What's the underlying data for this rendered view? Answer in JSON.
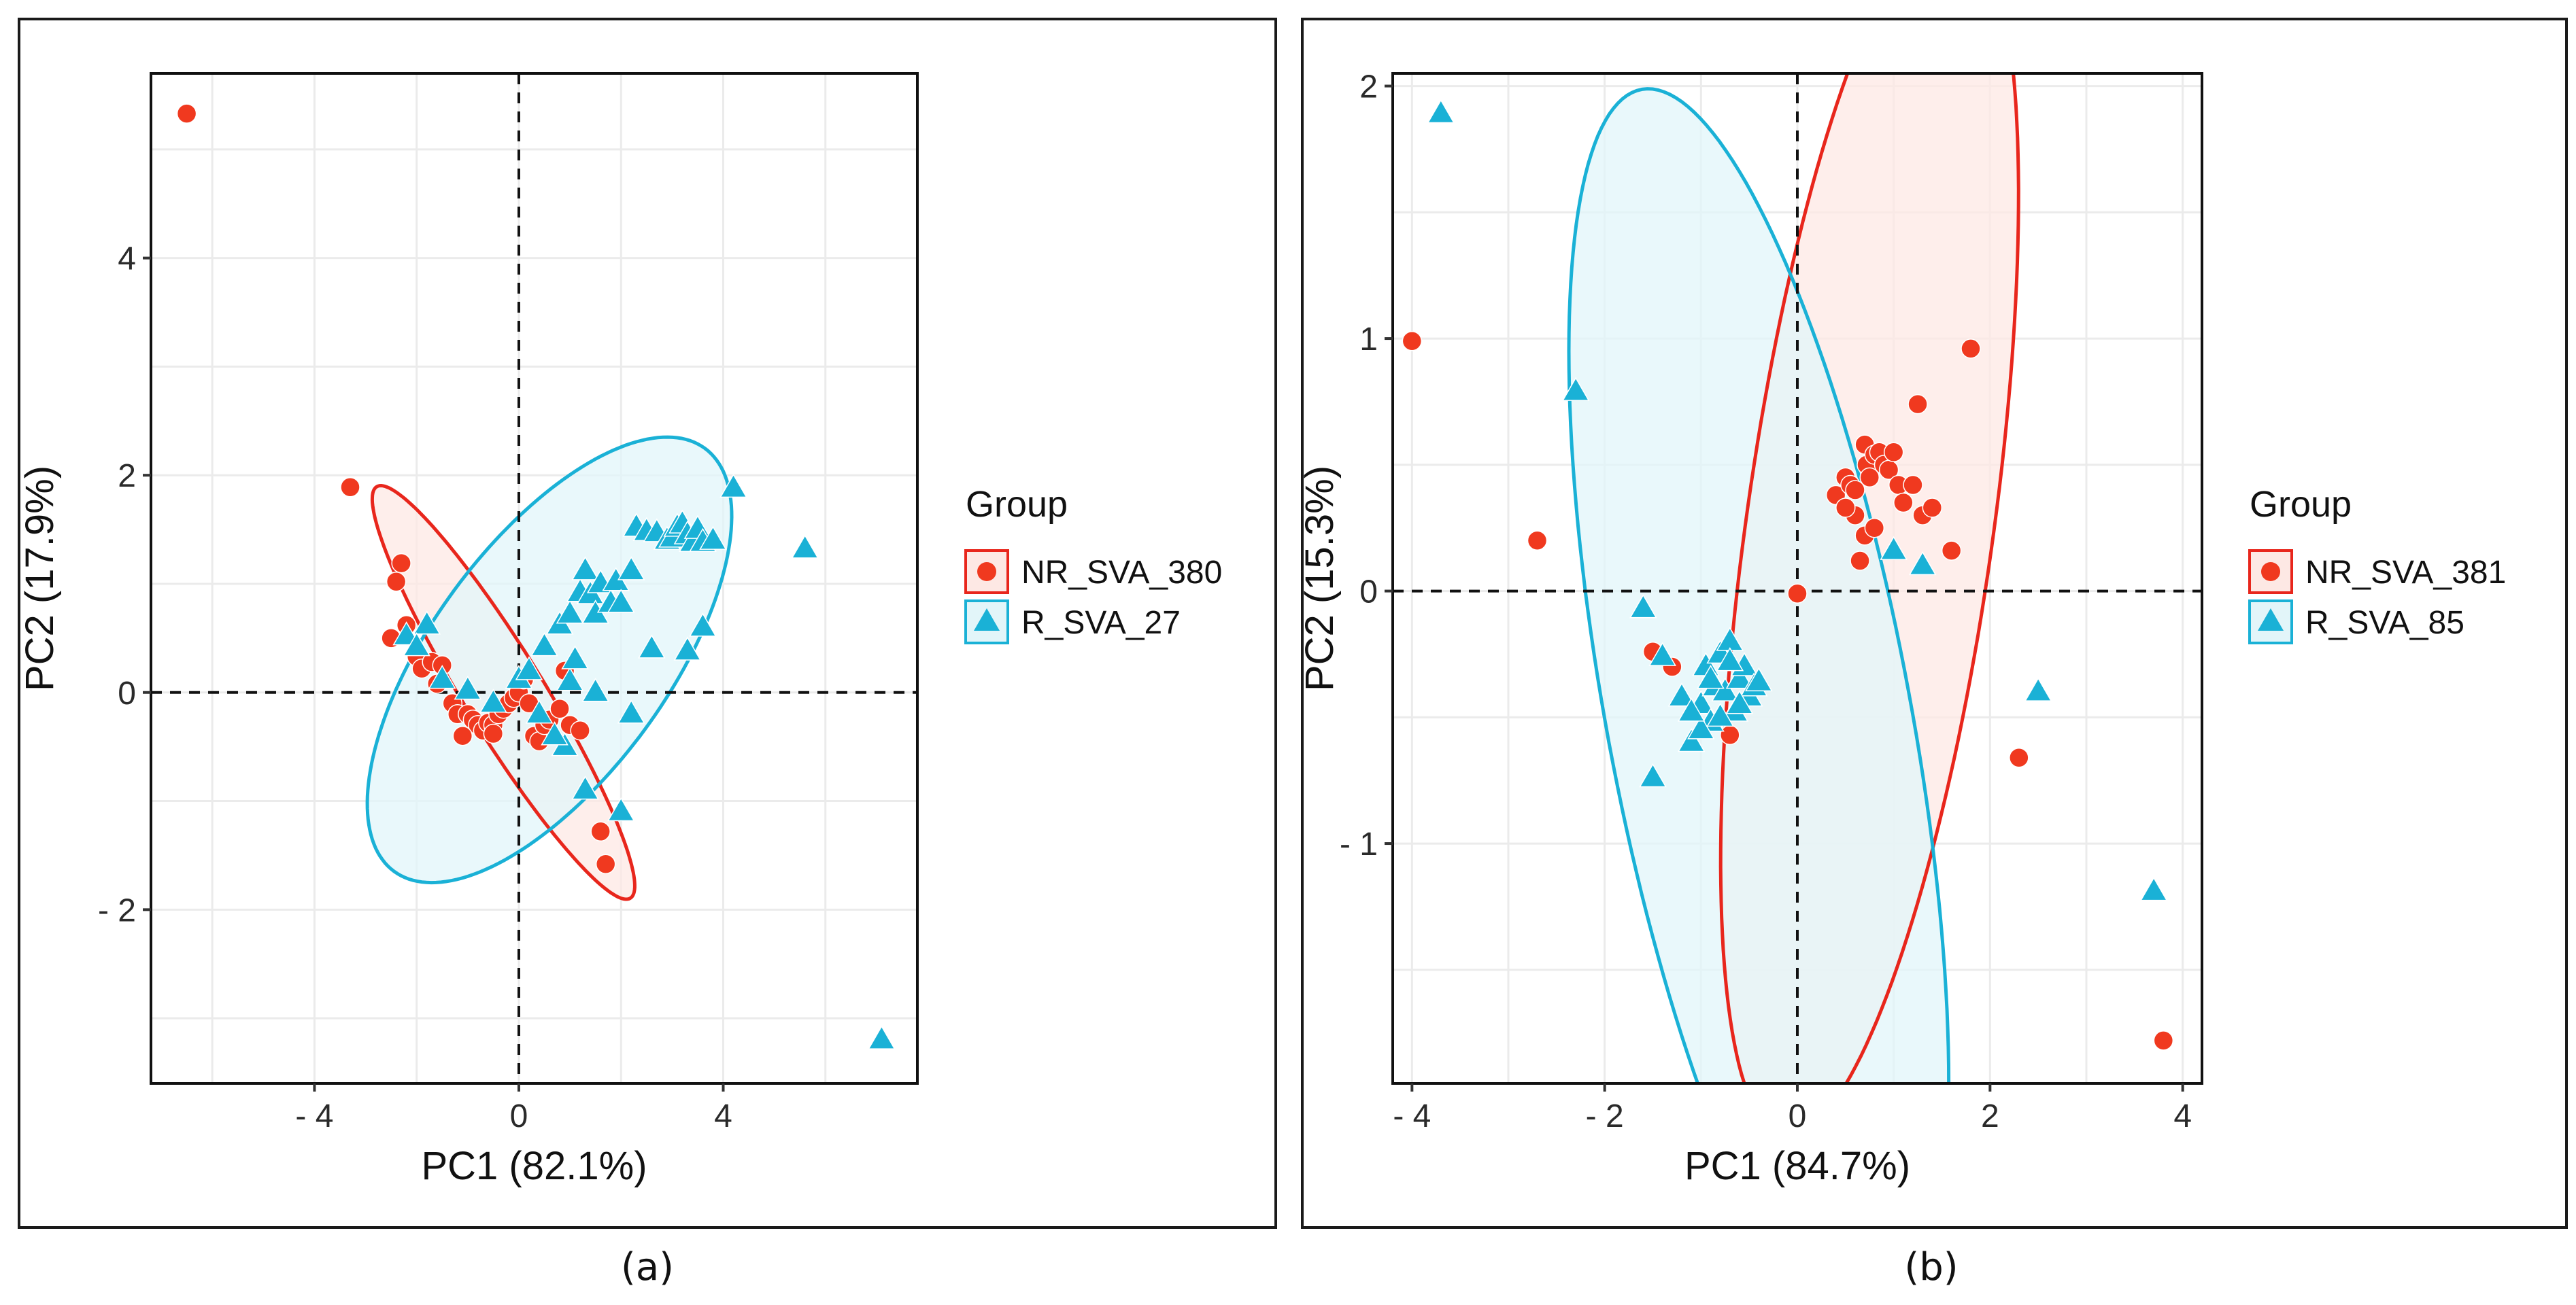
{
  "colors": {
    "group_nr": "#f0391f",
    "group_r": "#1ab1d6",
    "ellipse_nr": "#e8261c",
    "ellipse_r": "#1ab1d6",
    "fill_nr": "#fde8e4",
    "fill_r": "#e2f5f9",
    "grid": "#ebebeb",
    "axis": "#222222"
  },
  "captions": {
    "a": "(a)",
    "b": "(b)"
  },
  "chart_data": [
    {
      "type": "scatter",
      "panel": "(a)",
      "title": "",
      "xlabel": "PC1 (82.1%)",
      "ylabel": "PC2 (17.9%)",
      "xlim": [
        -7.2,
        7.8
      ],
      "ylim": [
        -3.6,
        5.7
      ],
      "xticks": [
        -4,
        0,
        4
      ],
      "xtick_labels": [
        "- 4",
        "0",
        "4"
      ],
      "yticks": [
        -2,
        0,
        2,
        4
      ],
      "ytick_labels": [
        "- 2",
        "0",
        "2",
        "4"
      ],
      "grid": true,
      "reference_lines": {
        "x": 0,
        "y": 0
      },
      "legend": {
        "title": "Group",
        "position": "right"
      },
      "series": [
        {
          "name": "NR_SVA_380",
          "marker": "circle",
          "x": [
            -6.5,
            -3.3,
            -2.3,
            -2.4,
            -2.5,
            -2.2,
            -2.0,
            -1.9,
            -1.7,
            -1.6,
            -1.5,
            -1.3,
            -1.2,
            -1.0,
            -0.9,
            -0.8,
            -0.7,
            -0.6,
            -0.5,
            -0.4,
            -0.3,
            -0.2,
            -0.1,
            0.0,
            0.2,
            0.3,
            0.4,
            0.5,
            0.6,
            0.8,
            0.9,
            1.0,
            1.2,
            1.6,
            1.7,
            -1.1,
            -0.5,
            0.1
          ],
          "y": [
            5.33,
            1.89,
            1.19,
            1.02,
            0.5,
            0.62,
            0.33,
            0.22,
            0.28,
            0.08,
            0.25,
            -0.1,
            -0.2,
            -0.2,
            -0.25,
            -0.3,
            -0.35,
            -0.28,
            -0.3,
            -0.2,
            -0.15,
            -0.1,
            -0.05,
            0.0,
            -0.1,
            -0.4,
            -0.45,
            -0.3,
            -0.25,
            -0.15,
            0.2,
            -0.3,
            -0.35,
            -1.28,
            -1.58,
            -0.4,
            -0.38,
            0.12
          ]
        },
        {
          "name": "R_SVA_27",
          "marker": "triangle",
          "x": [
            -2.2,
            -1.8,
            -2.0,
            -1.5,
            -1.0,
            -0.5,
            0.0,
            0.2,
            0.5,
            0.8,
            1.0,
            1.2,
            1.3,
            1.4,
            1.5,
            1.6,
            1.8,
            1.9,
            2.0,
            2.2,
            2.3,
            2.5,
            2.7,
            2.9,
            3.0,
            3.1,
            3.2,
            3.3,
            3.4,
            3.5,
            3.6,
            3.8,
            4.2,
            5.6,
            7.1,
            1.0,
            0.9,
            1.3,
            2.0,
            2.6,
            3.6,
            0.4,
            0.7,
            1.1,
            1.5,
            2.2,
            3.3
          ],
          "y": [
            0.52,
            0.62,
            0.42,
            0.12,
            0.02,
            -0.1,
            0.12,
            0.2,
            0.42,
            0.62,
            0.72,
            0.92,
            1.12,
            0.9,
            0.72,
            1.0,
            0.82,
            1.02,
            0.82,
            1.12,
            1.52,
            1.48,
            1.47,
            1.4,
            1.42,
            1.52,
            1.55,
            1.45,
            1.38,
            1.5,
            1.38,
            1.4,
            1.88,
            1.32,
            -3.2,
            0.1,
            -0.5,
            -0.9,
            -1.1,
            0.4,
            0.6,
            -0.2,
            -0.4,
            0.3,
            0.0,
            -0.2,
            0.38
          ]
        }
      ],
      "ellipses": [
        {
          "group": "NR_SVA_380",
          "center": [
            -0.3,
            0.0
          ],
          "semi_axes": [
            3.15,
            0.55
          ],
          "angle_deg": -36
        },
        {
          "group": "R_SVA_27",
          "center": [
            0.6,
            0.3
          ],
          "semi_axes": [
            3.85,
            1.45
          ],
          "angle_deg": 24
        }
      ]
    },
    {
      "type": "scatter",
      "panel": "(b)",
      "title": "",
      "xlabel": "PC1 (84.7%)",
      "ylabel": "PC2 (15.3%)",
      "xlim": [
        -4.2,
        4.2
      ],
      "ylim": [
        -1.95,
        2.05
      ],
      "xticks": [
        -4,
        -2,
        0,
        2,
        4
      ],
      "xtick_labels": [
        "- 4",
        "- 2",
        "0",
        "2",
        "4"
      ],
      "yticks": [
        -1,
        0,
        1,
        2
      ],
      "ytick_labels": [
        "- 1",
        "0",
        "1",
        "2"
      ],
      "grid": true,
      "reference_lines": {
        "x": 0,
        "y": 0
      },
      "legend": {
        "title": "Group",
        "position": "right"
      },
      "series": [
        {
          "name": "NR_SVA_381",
          "marker": "circle",
          "x": [
            -4.0,
            -2.7,
            -1.5,
            -1.3,
            -0.7,
            0.0,
            0.4,
            0.5,
            0.55,
            0.6,
            0.65,
            0.7,
            0.72,
            0.75,
            0.8,
            0.85,
            0.9,
            0.95,
            1.0,
            1.05,
            1.1,
            1.2,
            1.25,
            1.3,
            1.4,
            1.6,
            1.8,
            2.3,
            3.8,
            0.6,
            0.7,
            0.8,
            0.5
          ],
          "y": [
            0.99,
            0.2,
            -0.24,
            -0.3,
            -0.57,
            -0.01,
            0.38,
            0.45,
            0.42,
            0.3,
            0.12,
            0.58,
            0.5,
            0.45,
            0.54,
            0.55,
            0.5,
            0.48,
            0.55,
            0.42,
            0.35,
            0.42,
            0.74,
            0.3,
            0.33,
            0.16,
            0.96,
            -0.66,
            -1.78,
            0.4,
            0.22,
            0.25,
            0.33
          ]
        },
        {
          "name": "R_SVA_85",
          "marker": "triangle",
          "x": [
            -3.7,
            -2.3,
            -1.6,
            -1.5,
            -1.4,
            -1.2,
            -1.1,
            -1.0,
            -0.95,
            -0.9,
            -0.85,
            -0.8,
            -0.75,
            -0.7,
            -0.65,
            -0.6,
            -0.55,
            -0.5,
            -0.45,
            -0.4,
            -1.0,
            -0.8,
            -0.6,
            -0.9,
            -1.1,
            -0.7,
            1.0,
            1.3,
            2.5,
            3.7
          ],
          "y": [
            1.89,
            0.79,
            -0.07,
            -0.74,
            -0.26,
            -0.42,
            -0.6,
            -0.45,
            -0.3,
            -0.52,
            -0.38,
            -0.25,
            -0.4,
            -0.2,
            -0.48,
            -0.35,
            -0.3,
            -0.42,
            -0.38,
            -0.36,
            -0.55,
            -0.5,
            -0.45,
            -0.35,
            -0.48,
            -0.28,
            0.16,
            0.1,
            -0.4,
            -1.19
          ]
        }
      ],
      "ellipses": [
        {
          "group": "NR_SVA_381",
          "center": [
            0.75,
            0.25
          ],
          "semi_axes": [
            2.6,
            1.2
          ],
          "angle_deg": 65
        },
        {
          "group": "R_SVA_85",
          "center": [
            -0.4,
            -0.5
          ],
          "semi_axes": [
            2.85,
            1.4
          ],
          "angle_deg": -56
        }
      ]
    }
  ]
}
